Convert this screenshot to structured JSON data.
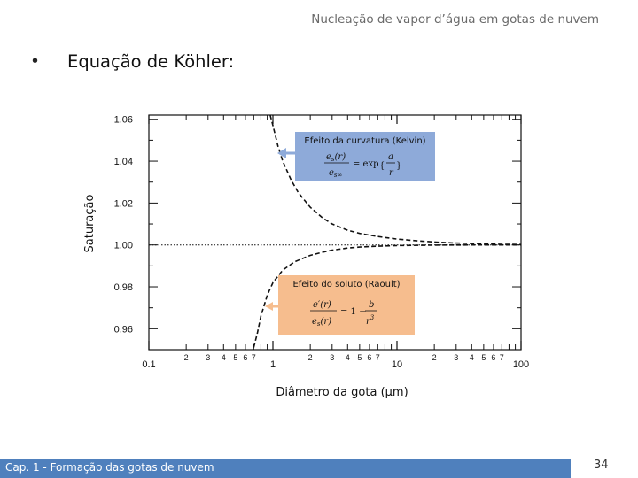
{
  "header": {
    "title": "Nucleação de vapor d’água em gotas de nuvem"
  },
  "slide": {
    "bullet": "•",
    "heading": "Equação de Köhler:"
  },
  "footer": {
    "text": "Cap. 1 - Formação das gotas de nuvem",
    "page": "34",
    "bar_color": "#4f80bd"
  },
  "chart_data": {
    "type": "line",
    "xlabel": "Diâmetro da gota (μm)",
    "ylabel": "Saturação",
    "xscale": "log",
    "xlim": [
      0.1,
      100
    ],
    "ylim": [
      0.95,
      1.062
    ],
    "x_major_ticks": [
      "0.1",
      "1",
      "10",
      "100"
    ],
    "x_minor_ticks": [
      "2",
      "3",
      "4",
      "5",
      "6",
      "7"
    ],
    "y_ticks": [
      "1.06",
      "1.04",
      "1.02",
      "1.00",
      "0.98",
      "0.96"
    ],
    "y_tick_values": [
      1.06,
      1.04,
      1.02,
      1.0,
      0.98,
      0.96
    ],
    "reference_line": 1.0,
    "series": [
      {
        "style": "dashed",
        "x": [
          0.95,
          1,
          1.1,
          1.2,
          1.4,
          1.6,
          2,
          2.5,
          3,
          4,
          5,
          7,
          10,
          15,
          20,
          30,
          50,
          70,
          100
        ],
        "y": [
          1.063,
          1.057,
          1.047,
          1.04,
          1.031,
          1.025,
          1.018,
          1.013,
          1.01,
          1.007,
          1.0055,
          1.004,
          1.0028,
          1.0019,
          1.0014,
          1.0009,
          1.0005,
          1.0003,
          1.0002
        ]
      },
      {
        "style": "dashed",
        "x": [
          0.7,
          0.75,
          0.8,
          0.9,
          1,
          1.2,
          1.5,
          2,
          2.5,
          3,
          4,
          5,
          7,
          10,
          15,
          20,
          30,
          50,
          100
        ],
        "y": [
          0.951,
          0.958,
          0.966,
          0.976,
          0.982,
          0.988,
          0.992,
          0.995,
          0.9965,
          0.9975,
          0.9985,
          0.999,
          0.9994,
          0.9997,
          0.99985,
          0.9999,
          0.99995,
          0.99998,
          1.0
        ]
      }
    ],
    "annotations": [
      {
        "label": "Efeito da curvatura (Kelvin)",
        "color": "#8eaad9",
        "equation": "es(r)/es∞ = exp{a/r}"
      },
      {
        "label": "Efeito do soluto (Raoult)",
        "color": "#f6bd8e",
        "equation": "e′(r)/es(r) = 1 − b/r³"
      }
    ]
  }
}
